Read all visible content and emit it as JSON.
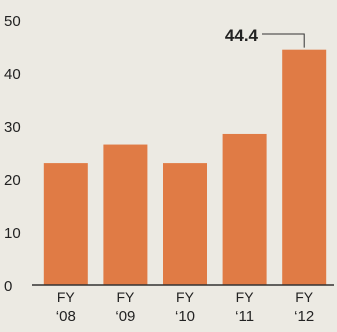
{
  "chart_data": {
    "type": "bar",
    "title": "",
    "xlabel": "",
    "ylabel": "",
    "categories": [
      {
        "line1": "FY",
        "line2": "‘08"
      },
      {
        "line1": "FY",
        "line2": "‘09"
      },
      {
        "line1": "FY",
        "line2": "‘10"
      },
      {
        "line1": "FY",
        "line2": "‘11"
      },
      {
        "line1": "FY",
        "line2": "‘12"
      }
    ],
    "values": [
      23,
      26.5,
      23,
      28.5,
      44.4
    ],
    "ylim": [
      0,
      50
    ],
    "yticks": [
      "0",
      "10",
      "20",
      "30",
      "40",
      "50"
    ],
    "grid": false,
    "annotation": {
      "text": "44.4",
      "category_index": 4
    },
    "colors": {
      "bar": "#e07b45",
      "background": "#eceae3",
      "text": "#222222",
      "axis": "#333333"
    }
  }
}
